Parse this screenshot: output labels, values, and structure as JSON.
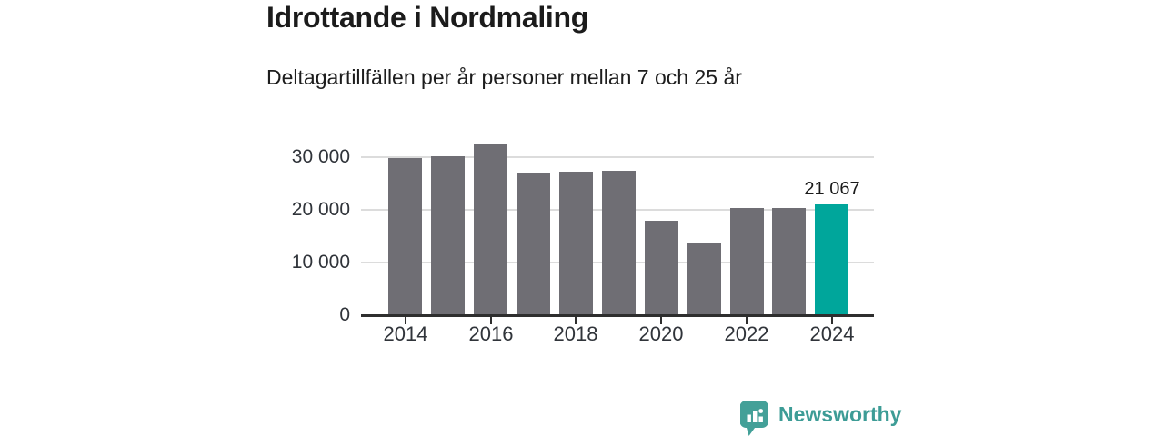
{
  "header": {
    "title": "Idrottande i Nordmaling",
    "subtitle": "Deltagartillfällen per år personer mellan 7 och 25 år"
  },
  "chart_data": {
    "type": "bar",
    "title": "Idrottande i Nordmaling",
    "subtitle": "Deltagartillfällen per år personer mellan 7 och 25 år",
    "categories": [
      "2014",
      "2015",
      "2016",
      "2017",
      "2018",
      "2019",
      "2020",
      "2021",
      "2022",
      "2023",
      "2024"
    ],
    "values": [
      29900,
      30300,
      32400,
      26900,
      27300,
      27500,
      17900,
      13600,
      20300,
      20300,
      21067
    ],
    "highlight_index": 10,
    "highlight_label": "21 067",
    "xlabel": "",
    "ylabel": "",
    "ylim": [
      0,
      34000
    ],
    "yticks": [
      0,
      10000,
      20000,
      30000
    ],
    "ytick_labels": [
      "0",
      "10 000",
      "20 000",
      "30 000"
    ],
    "xtick_labels": [
      "2014",
      "2016",
      "2018",
      "2020",
      "2022",
      "2024"
    ],
    "grid": "horizontal",
    "legend": "none",
    "colors": {
      "bar": "#6f6e74",
      "highlight": "#00a69b",
      "gridline": "#dcdcdc",
      "axis": "#2e2e2e",
      "axis_text": "#30343a",
      "value_label_text": "#1a1a1a"
    }
  },
  "branding": {
    "wordmark": "Newsworthy",
    "icon": "newsworthy-speech-bubble-chart-icon",
    "icon_color": "#43a098",
    "wordmark_color": "#3d9c96"
  }
}
